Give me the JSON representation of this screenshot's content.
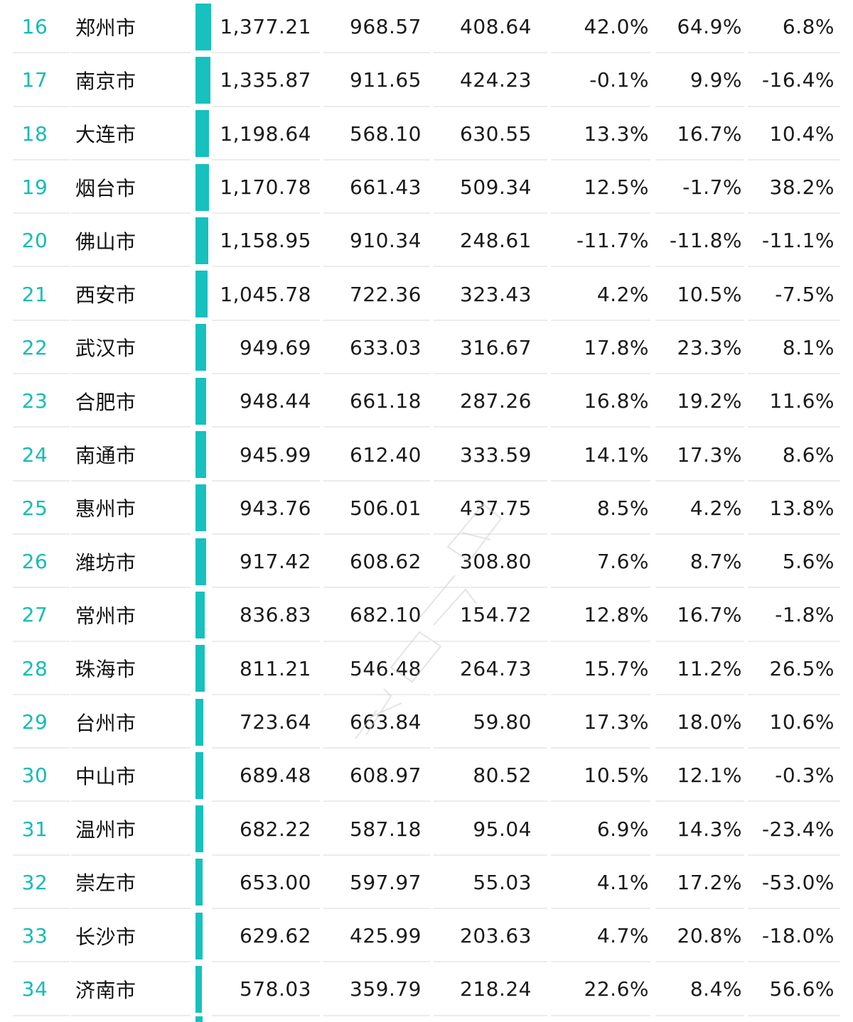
{
  "accent_color": "#16c1be",
  "rows": [
    {
      "rank": "16",
      "city": "郑州市",
      "total": "1,377.21",
      "a": "968.57",
      "b": "408.64",
      "p1": "42.0%",
      "p2": "64.9%",
      "p3": "6.8%",
      "bar_value": 1377.21
    },
    {
      "rank": "17",
      "city": "南京市",
      "total": "1,335.87",
      "a": "911.65",
      "b": "424.23",
      "p1": "-0.1%",
      "p2": "9.9%",
      "p3": "-16.4%",
      "bar_value": 1335.87
    },
    {
      "rank": "18",
      "city": "大连市",
      "total": "1,198.64",
      "a": "568.10",
      "b": "630.55",
      "p1": "13.3%",
      "p2": "16.7%",
      "p3": "10.4%",
      "bar_value": 1198.64
    },
    {
      "rank": "19",
      "city": "烟台市",
      "total": "1,170.78",
      "a": "661.43",
      "b": "509.34",
      "p1": "12.5%",
      "p2": "-1.7%",
      "p3": "38.2%",
      "bar_value": 1170.78
    },
    {
      "rank": "20",
      "city": "佛山市",
      "total": "1,158.95",
      "a": "910.34",
      "b": "248.61",
      "p1": "-11.7%",
      "p2": "-11.8%",
      "p3": "-11.1%",
      "bar_value": 1158.95
    },
    {
      "rank": "21",
      "city": "西安市",
      "total": "1,045.78",
      "a": "722.36",
      "b": "323.43",
      "p1": "4.2%",
      "p2": "10.5%",
      "p3": "-7.5%",
      "bar_value": 1045.78
    },
    {
      "rank": "22",
      "city": "武汉市",
      "total": "949.69",
      "a": "633.03",
      "b": "316.67",
      "p1": "17.8%",
      "p2": "23.3%",
      "p3": "8.1%",
      "bar_value": 949.69
    },
    {
      "rank": "23",
      "city": "合肥市",
      "total": "948.44",
      "a": "661.18",
      "b": "287.26",
      "p1": "16.8%",
      "p2": "19.2%",
      "p3": "11.6%",
      "bar_value": 948.44
    },
    {
      "rank": "24",
      "city": "南通市",
      "total": "945.99",
      "a": "612.40",
      "b": "333.59",
      "p1": "14.1%",
      "p2": "17.3%",
      "p3": "8.6%",
      "bar_value": 945.99
    },
    {
      "rank": "25",
      "city": "惠州市",
      "total": "943.76",
      "a": "506.01",
      "b": "437.75",
      "p1": "8.5%",
      "p2": "4.2%",
      "p3": "13.8%",
      "bar_value": 943.76
    },
    {
      "rank": "26",
      "city": "潍坊市",
      "total": "917.42",
      "a": "608.62",
      "b": "308.80",
      "p1": "7.6%",
      "p2": "8.7%",
      "p3": "5.6%",
      "bar_value": 917.42
    },
    {
      "rank": "27",
      "city": "常州市",
      "total": "836.83",
      "a": "682.10",
      "b": "154.72",
      "p1": "12.8%",
      "p2": "16.7%",
      "p3": "-1.8%",
      "bar_value": 836.83
    },
    {
      "rank": "28",
      "city": "珠海市",
      "total": "811.21",
      "a": "546.48",
      "b": "264.73",
      "p1": "15.7%",
      "p2": "11.2%",
      "p3": "26.5%",
      "bar_value": 811.21
    },
    {
      "rank": "29",
      "city": "台州市",
      "total": "723.64",
      "a": "663.84",
      "b": "59.80",
      "p1": "17.3%",
      "p2": "18.0%",
      "p3": "10.6%",
      "bar_value": 723.64
    },
    {
      "rank": "30",
      "city": "中山市",
      "total": "689.48",
      "a": "608.97",
      "b": "80.52",
      "p1": "10.5%",
      "p2": "12.1%",
      "p3": "-0.3%",
      "bar_value": 689.48
    },
    {
      "rank": "31",
      "city": "温州市",
      "total": "682.22",
      "a": "587.18",
      "b": "95.04",
      "p1": "6.9%",
      "p2": "14.3%",
      "p3": "-23.4%",
      "bar_value": 682.22
    },
    {
      "rank": "32",
      "city": "崇左市",
      "total": "653.00",
      "a": "597.97",
      "b": "55.03",
      "p1": "4.1%",
      "p2": "17.2%",
      "p3": "-53.0%",
      "bar_value": 653.0
    },
    {
      "rank": "33",
      "city": "长沙市",
      "total": "629.62",
      "a": "425.99",
      "b": "203.63",
      "p1": "4.7%",
      "p2": "20.8%",
      "p3": "-18.0%",
      "bar_value": 629.62
    },
    {
      "rank": "34",
      "city": "济南市",
      "total": "578.03",
      "a": "359.79",
      "b": "218.24",
      "p1": "22.6%",
      "p2": "8.4%",
      "p3": "56.6%",
      "bar_value": 578.03
    }
  ],
  "bar_scale_max": 1377.21
}
